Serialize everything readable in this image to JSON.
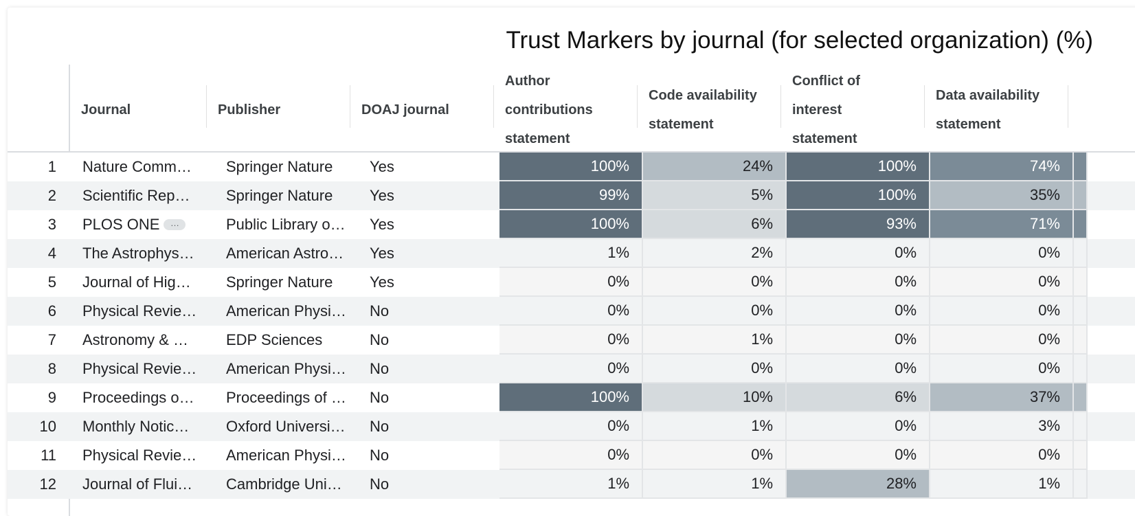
{
  "title": "Trust Markers by journal (for selected organization) (%)",
  "colors": {
    "high": "#5f6e7a",
    "mid": "#7b8b97",
    "low": "#b2bcc3",
    "faint": "#d5dadd",
    "none_even": "#f1f3f4",
    "none_odd": "#f5f5f5"
  },
  "columns": {
    "journal": "Journal",
    "publisher": "Publisher",
    "doaj": "DOAJ journal",
    "author_contributions": "Author contributions statement",
    "code_availability": "Code availability statement",
    "conflict_of_interest": "Conflict of interest statement",
    "data_availability": "Data availability statement"
  },
  "rows": [
    {
      "n": "1",
      "journal": "Nature Comm…",
      "publisher": "Springer Nature",
      "doaj": "Yes",
      "author": "100%",
      "code": "24%",
      "coi": "100%",
      "data": "74%"
    },
    {
      "n": "2",
      "journal": "Scientific Rep…",
      "publisher": "Springer Nature",
      "doaj": "Yes",
      "author": "99%",
      "code": "5%",
      "coi": "100%",
      "data": "35%"
    },
    {
      "n": "3",
      "journal": "PLOS ONE",
      "publisher": "Public Library o…",
      "doaj": "Yes",
      "author": "100%",
      "code": "6%",
      "coi": "93%",
      "data": "71%"
    },
    {
      "n": "4",
      "journal": "The Astrophys…",
      "publisher": "American Astro…",
      "doaj": "Yes",
      "author": "1%",
      "code": "2%",
      "coi": "0%",
      "data": "0%"
    },
    {
      "n": "5",
      "journal": "Journal of Hig…",
      "publisher": "Springer Nature",
      "doaj": "Yes",
      "author": "0%",
      "code": "0%",
      "coi": "0%",
      "data": "0%"
    },
    {
      "n": "6",
      "journal": "Physical Revie…",
      "publisher": "American Physi…",
      "doaj": "No",
      "author": "0%",
      "code": "0%",
      "coi": "0%",
      "data": "0%"
    },
    {
      "n": "7",
      "journal": "Astronomy & …",
      "publisher": "EDP Sciences",
      "doaj": "No",
      "author": "0%",
      "code": "1%",
      "coi": "0%",
      "data": "0%"
    },
    {
      "n": "8",
      "journal": "Physical Revie…",
      "publisher": "American Physi…",
      "doaj": "No",
      "author": "0%",
      "code": "0%",
      "coi": "0%",
      "data": "0%"
    },
    {
      "n": "9",
      "journal": "Proceedings o…",
      "publisher": "Proceedings of …",
      "doaj": "No",
      "author": "100%",
      "code": "10%",
      "coi": "6%",
      "data": "37%"
    },
    {
      "n": "10",
      "journal": "Monthly Notic…",
      "publisher": "Oxford Universi…",
      "doaj": "No",
      "author": "0%",
      "code": "1%",
      "coi": "0%",
      "data": "3%"
    },
    {
      "n": "11",
      "journal": "Physical Revie…",
      "publisher": "American Physi…",
      "doaj": "No",
      "author": "0%",
      "code": "0%",
      "coi": "0%",
      "data": "0%"
    },
    {
      "n": "12",
      "journal": "Journal of Flui…",
      "publisher": "Cambridge Uni…",
      "doaj": "No",
      "author": "1%",
      "code": "1%",
      "coi": "28%",
      "data": "1%"
    }
  ],
  "ellipsis_icon": "more-horiz-icon"
}
